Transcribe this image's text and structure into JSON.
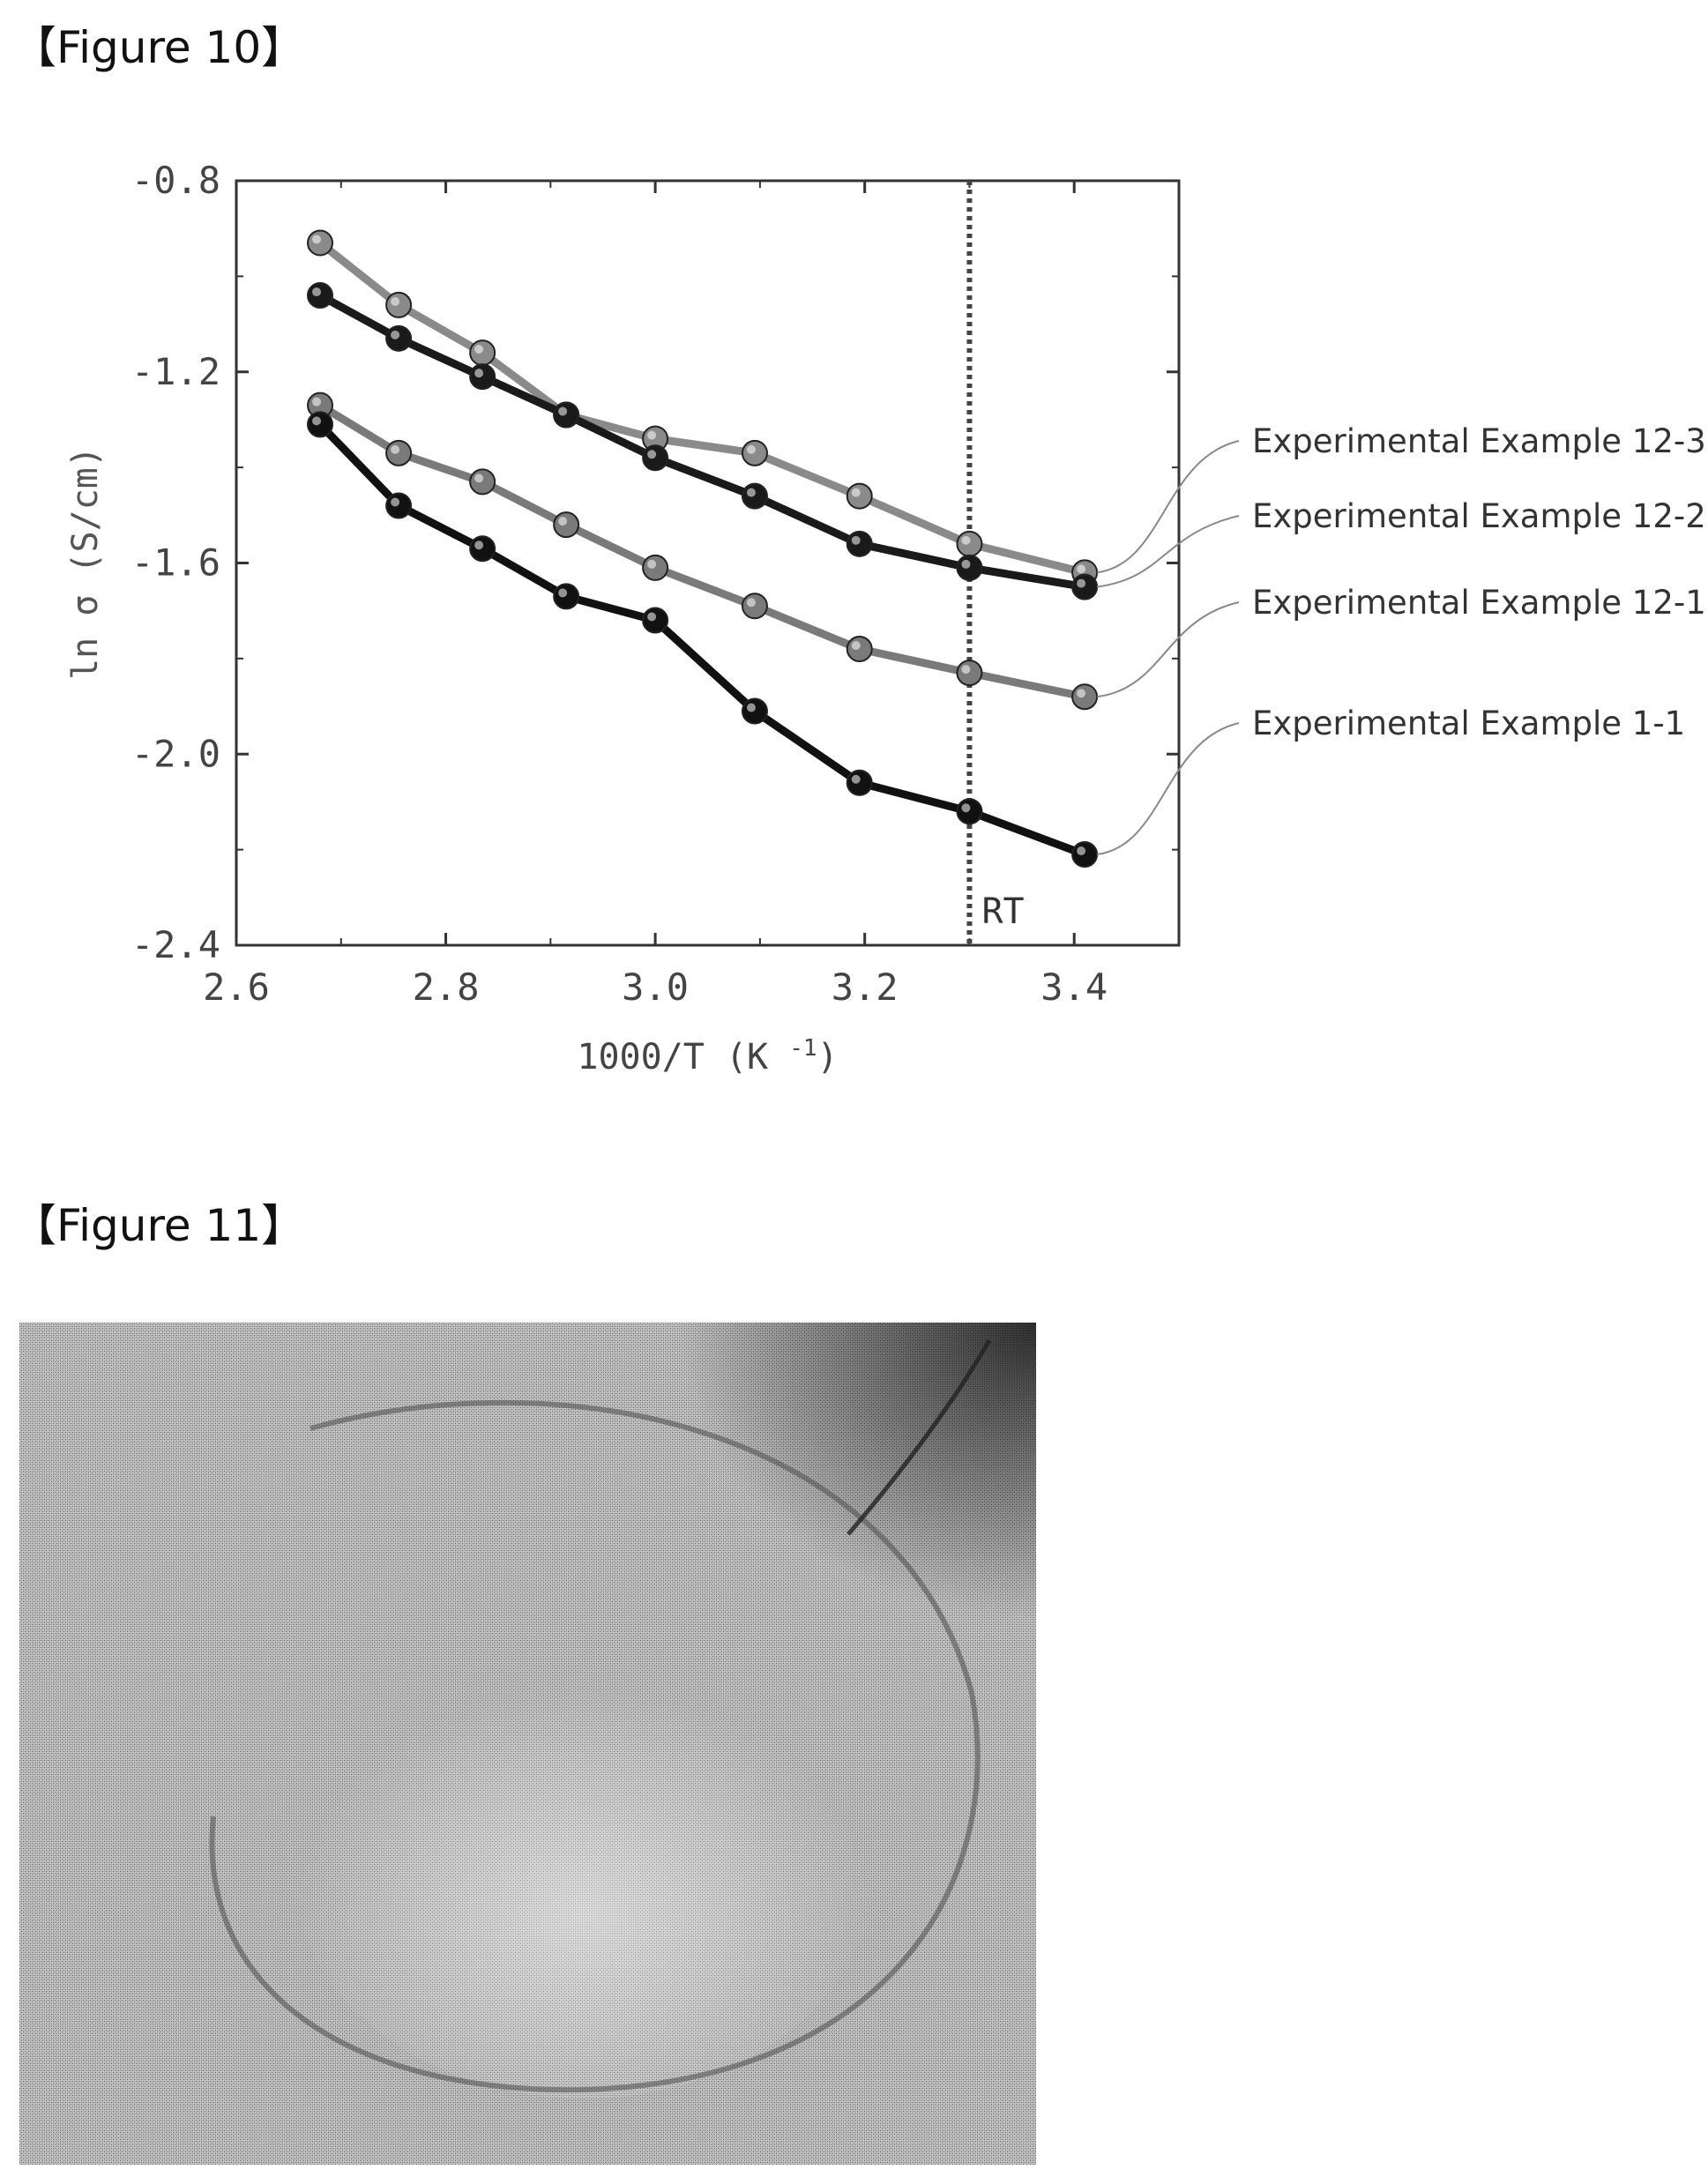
{
  "figure10": {
    "heading": "【Figure 10】",
    "chart_data": {
      "type": "line",
      "title": "",
      "xlabel": "1000/T (K",
      "xlabel_sup": "-1",
      "xlabel_close": ")",
      "ylabel": "ln σ (S/cm)",
      "xlim": [
        2.6,
        3.5
      ],
      "ylim": [
        -2.4,
        -0.8
      ],
      "x_ticks": [
        2.6,
        2.8,
        3.0,
        3.2,
        3.4
      ],
      "x_tick_labels": [
        "2.6",
        "2.8",
        "3.0",
        "3.2",
        "3.4"
      ],
      "y_ticks": [
        -0.8,
        -1.2,
        -1.6,
        -2.0,
        -2.4
      ],
      "y_tick_labels": [
        "-0.8",
        "-1.2",
        "-1.6",
        "-2.0",
        "-2.4"
      ],
      "grid": false,
      "reference_line": {
        "x": 3.3,
        "label": "RT"
      },
      "x": [
        2.68,
        2.755,
        2.835,
        2.915,
        3.0,
        3.095,
        3.195,
        3.3,
        3.41
      ],
      "series": [
        {
          "name": "Experimental Example 12-3",
          "color": "#8a8a8a",
          "values": [
            -0.93,
            -1.06,
            -1.16,
            -1.29,
            -1.34,
            -1.37,
            -1.46,
            -1.56,
            -1.62
          ]
        },
        {
          "name": "Experimental Example 12-2",
          "color": "#1a1a1a",
          "values": [
            -1.04,
            -1.13,
            -1.21,
            -1.29,
            -1.38,
            -1.46,
            -1.56,
            -1.61,
            -1.65
          ]
        },
        {
          "name": "Experimental Example 12-1",
          "color": "#7a7a7a",
          "values": [
            -1.27,
            -1.37,
            -1.43,
            -1.52,
            -1.61,
            -1.69,
            -1.78,
            -1.83,
            -1.88
          ]
        },
        {
          "name": "Experimental Example 1-1",
          "color": "#111111",
          "values": [
            -1.31,
            -1.48,
            -1.57,
            -1.67,
            -1.72,
            -1.91,
            -2.06,
            -2.12,
            -2.21
          ]
        }
      ]
    }
  },
  "figure11": {
    "heading": "【Figure 11】"
  }
}
